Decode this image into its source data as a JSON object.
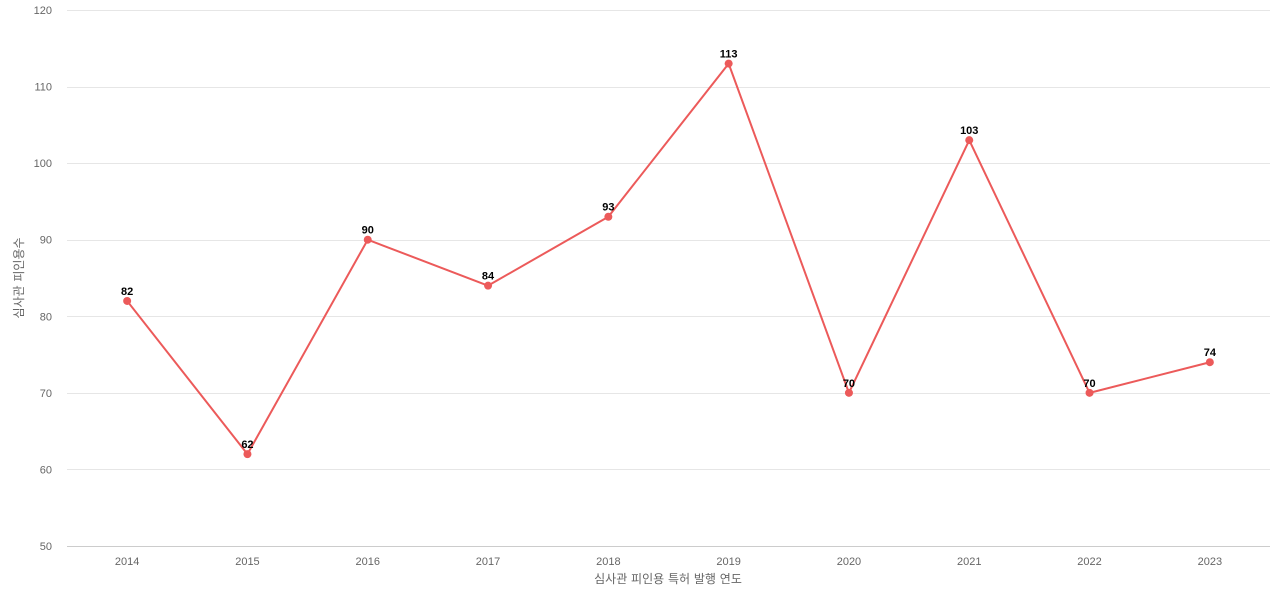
{
  "chart_data": {
    "type": "line",
    "title": "",
    "xlabel": "심사관 피인용 특허 발행 연도",
    "ylabel": "심사관 피인용수",
    "categories": [
      "2014",
      "2015",
      "2016",
      "2017",
      "2018",
      "2019",
      "2020",
      "2021",
      "2022",
      "2023"
    ],
    "series": [
      {
        "values": [
          82,
          62,
          90,
          84,
          93,
          113,
          70,
          103,
          70,
          74
        ],
        "color": "#ec5a5a"
      }
    ],
    "ylim": [
      50,
      120
    ],
    "yticks": [
      50,
      60,
      70,
      80,
      90,
      100,
      110,
      120
    ],
    "grid": true,
    "legend": "none"
  }
}
